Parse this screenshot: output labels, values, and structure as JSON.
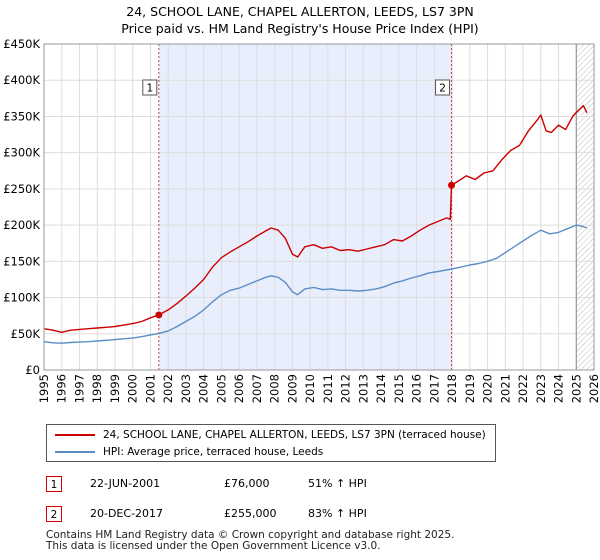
{
  "chart_data": {
    "type": "line",
    "title_line1": "24, SCHOOL LANE, CHAPEL ALLERTON, LEEDS, LS7 3PN",
    "title_line2": "Price paid vs. HM Land Registry's House Price Index (HPI)",
    "x_range": [
      1995,
      2026
    ],
    "x_ticks": [
      "1995",
      "1996",
      "1997",
      "1998",
      "1999",
      "2000",
      "2001",
      "2002",
      "2003",
      "2004",
      "2005",
      "2006",
      "2007",
      "2008",
      "2009",
      "2010",
      "2011",
      "2012",
      "2013",
      "2014",
      "2015",
      "2016",
      "2017",
      "2018",
      "2019",
      "2020",
      "2021",
      "2022",
      "2023",
      "2024",
      "2025",
      "2026"
    ],
    "y_range": [
      0,
      450000
    ],
    "y_ticks": [
      {
        "value": 0,
        "label": "£0"
      },
      {
        "value": 50000,
        "label": "£50K"
      },
      {
        "value": 100000,
        "label": "£100K"
      },
      {
        "value": 150000,
        "label": "£150K"
      },
      {
        "value": 200000,
        "label": "£200K"
      },
      {
        "value": 250000,
        "label": "£250K"
      },
      {
        "value": 300000,
        "label": "£300K"
      },
      {
        "value": 350000,
        "label": "£350K"
      },
      {
        "value": 400000,
        "label": "£400K"
      },
      {
        "value": 450000,
        "label": "£450K"
      }
    ],
    "grid": true,
    "highlight_span": [
      2001.47,
      2017.97
    ],
    "hatch_from": 2025.0,
    "series": [
      {
        "name": "24, SCHOOL LANE, CHAPEL ALLERTON, LEEDS, LS7 3PN (terraced house)",
        "color": "#cc0000",
        "points": [
          [
            1995.0,
            57000
          ],
          [
            1995.5,
            55000
          ],
          [
            1996.0,
            52000
          ],
          [
            1996.5,
            55000
          ],
          [
            1997.0,
            56000
          ],
          [
            1997.5,
            57000
          ],
          [
            1998.0,
            58000
          ],
          [
            1998.5,
            59000
          ],
          [
            1999.0,
            60000
          ],
          [
            1999.5,
            62000
          ],
          [
            2000.0,
            64000
          ],
          [
            2000.5,
            67000
          ],
          [
            2001.0,
            72000
          ],
          [
            2001.47,
            76000
          ],
          [
            2002.0,
            83000
          ],
          [
            2002.5,
            92000
          ],
          [
            2003.0,
            102000
          ],
          [
            2003.5,
            113000
          ],
          [
            2004.0,
            125000
          ],
          [
            2004.5,
            142000
          ],
          [
            2005.0,
            155000
          ],
          [
            2005.5,
            163000
          ],
          [
            2006.0,
            170000
          ],
          [
            2006.5,
            177000
          ],
          [
            2007.0,
            185000
          ],
          [
            2007.5,
            192000
          ],
          [
            2007.8,
            196000
          ],
          [
            2008.2,
            193000
          ],
          [
            2008.6,
            182000
          ],
          [
            2009.0,
            160000
          ],
          [
            2009.3,
            156000
          ],
          [
            2009.7,
            170000
          ],
          [
            2010.2,
            173000
          ],
          [
            2010.7,
            168000
          ],
          [
            2011.2,
            170000
          ],
          [
            2011.7,
            165000
          ],
          [
            2012.2,
            166000
          ],
          [
            2012.7,
            164000
          ],
          [
            2013.2,
            167000
          ],
          [
            2013.7,
            170000
          ],
          [
            2014.2,
            173000
          ],
          [
            2014.7,
            180000
          ],
          [
            2015.2,
            178000
          ],
          [
            2015.7,
            185000
          ],
          [
            2016.2,
            193000
          ],
          [
            2016.7,
            200000
          ],
          [
            2017.2,
            205000
          ],
          [
            2017.7,
            210000
          ],
          [
            2017.9,
            208000
          ],
          [
            2017.97,
            255000
          ],
          [
            2018.3,
            260000
          ],
          [
            2018.8,
            268000
          ],
          [
            2019.3,
            263000
          ],
          [
            2019.8,
            272000
          ],
          [
            2020.3,
            275000
          ],
          [
            2020.8,
            290000
          ],
          [
            2021.3,
            303000
          ],
          [
            2021.8,
            310000
          ],
          [
            2022.3,
            330000
          ],
          [
            2022.8,
            345000
          ],
          [
            2023.0,
            352000
          ],
          [
            2023.3,
            330000
          ],
          [
            2023.6,
            328000
          ],
          [
            2024.0,
            338000
          ],
          [
            2024.4,
            332000
          ],
          [
            2024.8,
            350000
          ],
          [
            2025.1,
            358000
          ],
          [
            2025.4,
            365000
          ],
          [
            2025.6,
            355000
          ]
        ]
      },
      {
        "name": "HPI: Average price, terraced house, Leeds",
        "color": "#5b8ec8",
        "points": [
          [
            1995.0,
            39000
          ],
          [
            1995.5,
            37500
          ],
          [
            1996.0,
            37000
          ],
          [
            1996.5,
            38000
          ],
          [
            1997.0,
            38500
          ],
          [
            1997.5,
            39000
          ],
          [
            1998.0,
            40000
          ],
          [
            1998.5,
            41000
          ],
          [
            1999.0,
            42000
          ],
          [
            1999.5,
            43000
          ],
          [
            2000.0,
            44000
          ],
          [
            2000.5,
            46000
          ],
          [
            2001.0,
            48500
          ],
          [
            2001.47,
            50300
          ],
          [
            2002.0,
            54000
          ],
          [
            2002.5,
            60000
          ],
          [
            2003.0,
            67000
          ],
          [
            2003.5,
            74000
          ],
          [
            2004.0,
            83000
          ],
          [
            2004.5,
            94000
          ],
          [
            2005.0,
            104000
          ],
          [
            2005.5,
            110000
          ],
          [
            2006.0,
            113000
          ],
          [
            2006.5,
            118000
          ],
          [
            2007.0,
            123000
          ],
          [
            2007.5,
            128000
          ],
          [
            2007.8,
            130000
          ],
          [
            2008.2,
            128000
          ],
          [
            2008.6,
            121000
          ],
          [
            2009.0,
            108000
          ],
          [
            2009.3,
            104000
          ],
          [
            2009.7,
            112000
          ],
          [
            2010.2,
            114000
          ],
          [
            2010.7,
            111000
          ],
          [
            2011.2,
            112000
          ],
          [
            2011.7,
            110000
          ],
          [
            2012.2,
            110000
          ],
          [
            2012.7,
            109000
          ],
          [
            2013.2,
            110000
          ],
          [
            2013.7,
            112000
          ],
          [
            2014.2,
            115000
          ],
          [
            2014.7,
            120000
          ],
          [
            2015.2,
            123000
          ],
          [
            2015.7,
            127000
          ],
          [
            2016.2,
            130000
          ],
          [
            2016.7,
            134000
          ],
          [
            2017.2,
            136000
          ],
          [
            2017.97,
            139300
          ],
          [
            2018.5,
            142000
          ],
          [
            2019.0,
            145000
          ],
          [
            2019.5,
            147000
          ],
          [
            2020.0,
            150000
          ],
          [
            2020.5,
            154000
          ],
          [
            2021.0,
            162000
          ],
          [
            2021.5,
            170000
          ],
          [
            2022.0,
            178000
          ],
          [
            2022.5,
            186000
          ],
          [
            2023.0,
            193000
          ],
          [
            2023.5,
            188000
          ],
          [
            2024.0,
            190000
          ],
          [
            2024.5,
            195000
          ],
          [
            2025.0,
            200000
          ],
          [
            2025.4,
            198000
          ],
          [
            2025.6,
            196000
          ]
        ]
      }
    ],
    "markers": [
      {
        "label": "1",
        "x": 2001.47,
        "y": 76000
      },
      {
        "label": "2",
        "x": 2017.97,
        "y": 255000
      }
    ]
  },
  "legend": {
    "property_label": "24, SCHOOL LANE, CHAPEL ALLERTON, LEEDS, LS7 3PN (terraced house)",
    "hpi_label": "HPI: Average price, terraced house, Leeds"
  },
  "transactions": [
    {
      "num": "1",
      "date": "22-JUN-2001",
      "price": "£76,000",
      "hpi": "51% ↑ HPI"
    },
    {
      "num": "2",
      "date": "20-DEC-2017",
      "price": "£255,000",
      "hpi": "83% ↑ HPI"
    }
  ],
  "footer": {
    "line1": "Contains HM Land Registry data © Crown copyright and database right 2025.",
    "line2": "This data is licensed under the Open Government Licence v3.0."
  }
}
